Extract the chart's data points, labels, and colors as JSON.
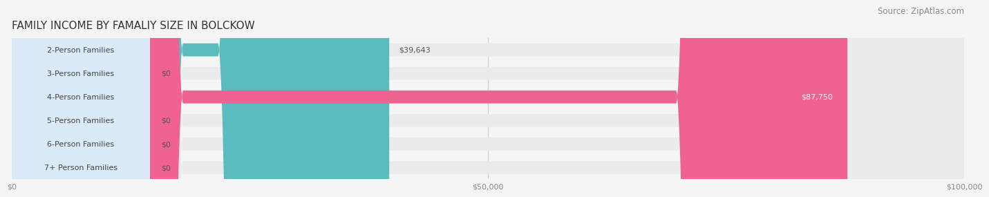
{
  "title": "FAMILY INCOME BY FAMALIY SIZE IN BOLCKOW",
  "source": "Source: ZipAtlas.com",
  "categories": [
    "2-Person Families",
    "3-Person Families",
    "4-Person Families",
    "5-Person Families",
    "6-Person Families",
    "7+ Person Families"
  ],
  "values": [
    39643,
    0,
    87750,
    0,
    0,
    0
  ],
  "bar_colors": [
    "#5bbcbf",
    "#9b9bda",
    "#f06292",
    "#f5c98a",
    "#f4a0a0",
    "#a8c8e8"
  ],
  "label_bg_colors": [
    "#d0eef0",
    "#d8d8f5",
    "#fce4ec",
    "#fdebd0",
    "#fddbd8",
    "#daeaf8"
  ],
  "value_labels": [
    "$39,643",
    "$0",
    "$87,750",
    "$0",
    "$0",
    "$0"
  ],
  "xlim": [
    0,
    100000
  ],
  "xtick_values": [
    0,
    50000,
    100000
  ],
  "xtick_labels": [
    "$0",
    "$50,000",
    "$100,000"
  ],
  "background_color": "#f5f5f5",
  "bar_bg_color": "#ebebeb",
  "title_fontsize": 11,
  "source_fontsize": 8.5,
  "label_fontsize": 8,
  "value_fontsize": 8,
  "bar_height": 0.55
}
